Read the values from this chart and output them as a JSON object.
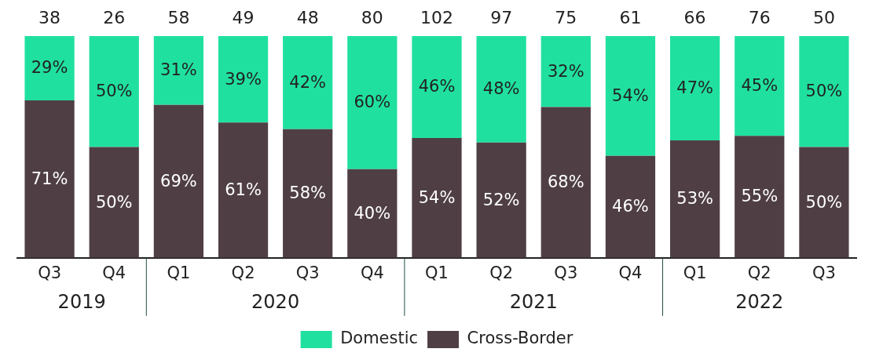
{
  "chart_data": {
    "type": "bar",
    "stacked": true,
    "categories": [
      "Q3",
      "Q4",
      "Q1",
      "Q2",
      "Q3",
      "Q4",
      "Q1",
      "Q2",
      "Q3",
      "Q4",
      "Q1",
      "Q2",
      "Q3"
    ],
    "series": [
      {
        "name": "Cross-Border",
        "color": "#4f3f45",
        "values": [
          71,
          50,
          69,
          61,
          58,
          40,
          54,
          52,
          68,
          46,
          53,
          55,
          50
        ],
        "value_labels": [
          "71%",
          "50%",
          "69%",
          "61%",
          "58%",
          "40%",
          "54%",
          "52%",
          "68%",
          "46%",
          "53%",
          "55%",
          "50%"
        ]
      },
      {
        "name": "Domestic",
        "color": "#20e0a0",
        "values": [
          29,
          50,
          31,
          39,
          42,
          60,
          46,
          48,
          32,
          54,
          47,
          45,
          50
        ],
        "value_labels": [
          "29%",
          "50%",
          "31%",
          "39%",
          "42%",
          "60%",
          "46%",
          "48%",
          "32%",
          "54%",
          "47%",
          "45%",
          "50%"
        ]
      }
    ],
    "annotations": [
      "38",
      "26",
      "58",
      "49",
      "48",
      "80",
      "102",
      "97",
      "75",
      "61",
      "66",
      "76",
      "50",
      "2019",
      "2020",
      "2021",
      "2022"
    ],
    "ylim": [
      0,
      100
    ],
    "tick_labels": "x",
    "grid": false,
    "legend": "bottom"
  }
}
